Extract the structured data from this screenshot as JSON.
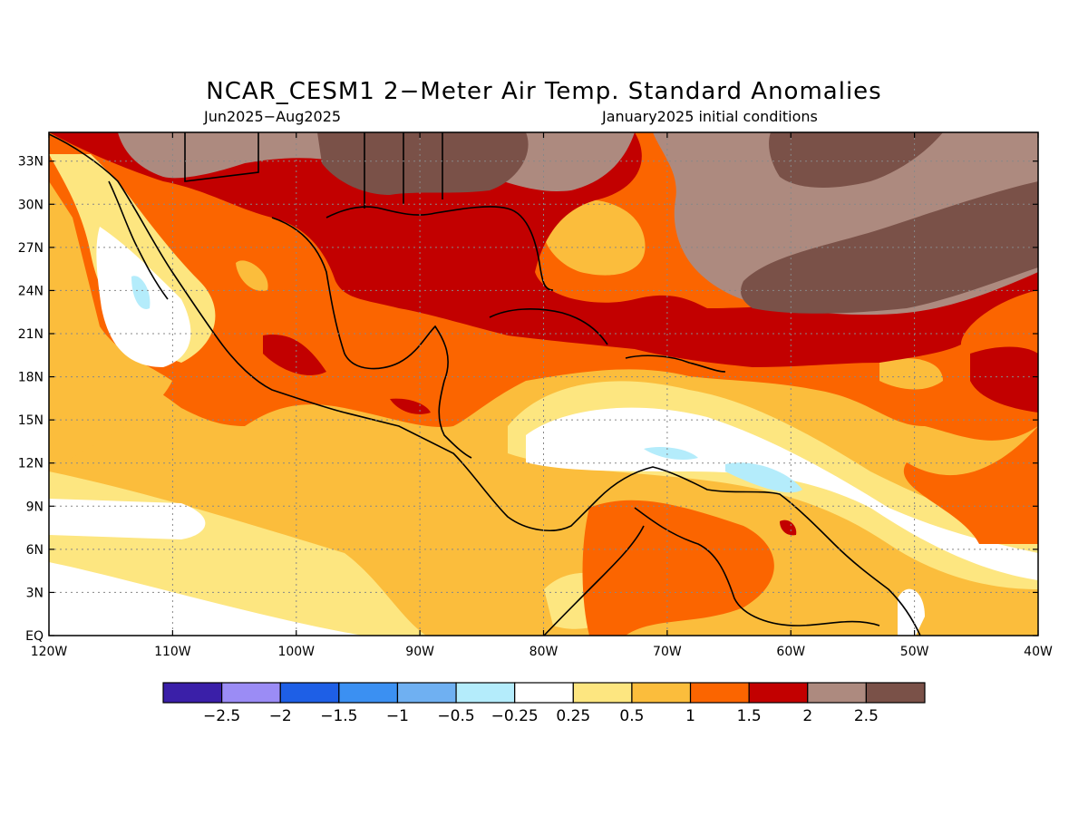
{
  "title": "NCAR_CESM1 2−Meter Air Temp. Standard Anomalies",
  "subtitle_left": "Jun2025−Aug2025",
  "subtitle_right": "January2025 initial conditions",
  "map": {
    "lon_range": [
      -120,
      -40
    ],
    "lat_range": [
      0,
      35
    ],
    "lon_ticks": [
      {
        "value": -120,
        "label": "120W"
      },
      {
        "value": -110,
        "label": "110W"
      },
      {
        "value": -100,
        "label": "100W"
      },
      {
        "value": -90,
        "label": "90W"
      },
      {
        "value": -80,
        "label": "80W"
      },
      {
        "value": -70,
        "label": "70W"
      },
      {
        "value": -60,
        "label": "60W"
      },
      {
        "value": -50,
        "label": "50W"
      },
      {
        "value": -40,
        "label": "40W"
      }
    ],
    "lat_ticks": [
      {
        "value": 33,
        "label": "33N"
      },
      {
        "value": 30,
        "label": "30N"
      },
      {
        "value": 27,
        "label": "27N"
      },
      {
        "value": 24,
        "label": "24N"
      },
      {
        "value": 21,
        "label": "21N"
      },
      {
        "value": 18,
        "label": "18N"
      },
      {
        "value": 15,
        "label": "15N"
      },
      {
        "value": 12,
        "label": "12N"
      },
      {
        "value": 9,
        "label": "9N"
      },
      {
        "value": 6,
        "label": "6N"
      },
      {
        "value": 3,
        "label": "3N"
      },
      {
        "value": 0,
        "label": "EQ"
      }
    ],
    "grid": "dotted"
  },
  "colorbar": {
    "colors": [
      "#3a1fa8",
      "#9b8cf5",
      "#1e5fe6",
      "#3b90f2",
      "#6fb0f2",
      "#b4ecfb",
      "#ffffff",
      "#fde680",
      "#fbbd3c",
      "#fb6500",
      "#c20000",
      "#ad8a7f",
      "#7a5148"
    ],
    "labels": [
      "−2.5",
      "−2",
      "−1.5",
      "−1",
      "−0.5",
      "−0.25",
      "0.25",
      "0.5",
      "1",
      "1.5",
      "2",
      "2.5"
    ]
  }
}
